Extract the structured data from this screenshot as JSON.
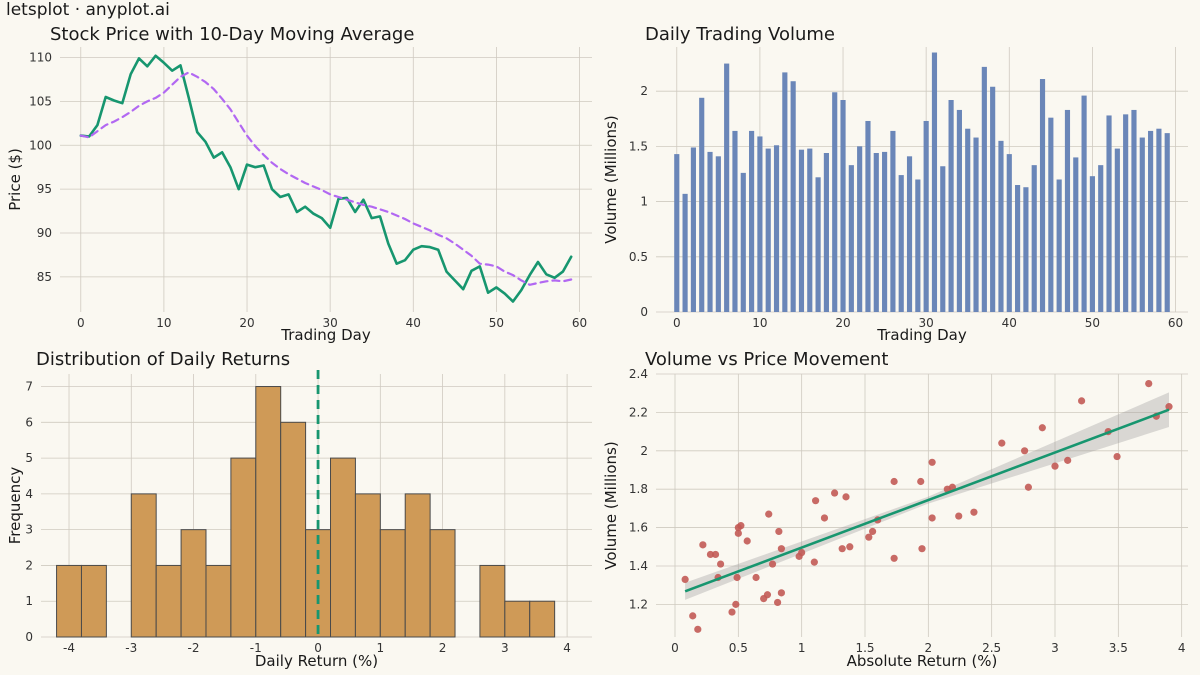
{
  "brand": "letsplot · anyplot.ai",
  "chart_data": [
    {
      "id": "price",
      "type": "line",
      "title": "Stock Price with 10-Day Moving Average",
      "xlabel": "Trading Day",
      "ylabel": "Price ($)",
      "xlim": [
        -2.5,
        61.5
      ],
      "ylim": [
        81,
        111.2
      ],
      "xticks": [
        0,
        10,
        20,
        30,
        40,
        50,
        60
      ],
      "yticks": [
        85,
        90,
        95,
        100,
        105,
        110
      ],
      "series": [
        {
          "color": "#17966F",
          "style": "solid",
          "x": [
            0,
            1,
            2,
            3,
            4,
            5,
            6,
            7,
            8,
            9,
            10,
            11,
            12,
            13,
            14,
            15,
            16,
            17,
            18,
            19,
            20,
            21,
            22,
            23,
            24,
            25,
            26,
            27,
            28,
            29,
            30,
            31,
            32,
            33,
            34,
            35,
            36,
            37,
            38,
            39,
            40,
            41,
            42,
            43,
            44,
            45,
            46,
            47,
            48,
            49,
            50,
            51,
            52,
            53,
            54,
            55,
            56,
            57,
            58,
            59
          ],
          "y": [
            101.1,
            101.0,
            102.3,
            105.5,
            105.1,
            104.8,
            108.1,
            109.9,
            109.0,
            110.2,
            109.4,
            108.5,
            109.1,
            105.4,
            101.5,
            100.4,
            98.6,
            99.2,
            97.5,
            95.0,
            97.8,
            97.5,
            97.7,
            95.0,
            94.1,
            94.4,
            92.4,
            93.0,
            92.2,
            91.7,
            90.6,
            93.9,
            94.0,
            92.4,
            93.8,
            91.7,
            91.9,
            88.8,
            86.5,
            86.9,
            88.1,
            88.5,
            88.4,
            88.1,
            85.6,
            84.6,
            83.6,
            85.7,
            86.2,
            83.2,
            83.8,
            83.1,
            82.2,
            83.5,
            85.2,
            86.7,
            85.3,
            84.9,
            85.6,
            87.3
          ]
        },
        {
          "color": "#B268F2",
          "style": "dashed",
          "x": [
            0,
            1,
            2,
            3,
            4,
            5,
            6,
            7,
            8,
            9,
            10,
            11,
            12,
            13,
            14,
            15,
            16,
            17,
            18,
            19,
            20,
            21,
            22,
            23,
            24,
            25,
            26,
            27,
            28,
            29,
            30,
            31,
            32,
            33,
            34,
            35,
            36,
            37,
            38,
            39,
            40,
            41,
            42,
            43,
            44,
            45,
            46,
            47,
            48,
            49,
            50,
            51,
            52,
            53,
            54,
            55,
            56,
            57,
            58,
            59
          ],
          "y": [
            101.1,
            100.9,
            101.6,
            102.3,
            102.7,
            103.2,
            103.8,
            104.5,
            105.0,
            105.4,
            106.0,
            106.9,
            107.8,
            108.3,
            107.8,
            107.2,
            106.4,
            105.3,
            104.1,
            102.6,
            101.1,
            99.9,
            98.9,
            98.0,
            97.3,
            96.7,
            96.2,
            95.7,
            95.3,
            94.9,
            94.4,
            94.1,
            93.8,
            93.5,
            93.2,
            93.0,
            92.7,
            92.4,
            92.0,
            91.6,
            91.1,
            90.7,
            90.3,
            89.8,
            89.4,
            88.8,
            88.1,
            87.4,
            86.5,
            86.4,
            86.2,
            85.6,
            85.2,
            84.6,
            84.1,
            84.3,
            84.5,
            84.6,
            84.5,
            84.7
          ]
        }
      ]
    },
    {
      "id": "volume",
      "type": "bar",
      "title": "Daily Trading Volume",
      "xlabel": "Trading Day",
      "ylabel": "Volume (Millions)",
      "color": "#6A86B8",
      "xlim": [
        -2.5,
        61.5
      ],
      "ylim": [
        0,
        2.4
      ],
      "xticks": [
        0,
        10,
        20,
        30,
        40,
        50,
        60
      ],
      "yticks": [
        0,
        0.5,
        1,
        1.5,
        2
      ],
      "ytick_labels": [
        "0",
        "0.5",
        "1",
        "1.5",
        "2"
      ],
      "x": [
        0,
        1,
        2,
        3,
        4,
        5,
        6,
        7,
        8,
        9,
        10,
        11,
        12,
        13,
        14,
        15,
        16,
        17,
        18,
        19,
        20,
        21,
        22,
        23,
        24,
        25,
        26,
        27,
        28,
        29,
        30,
        31,
        32,
        33,
        34,
        35,
        36,
        37,
        38,
        39,
        40,
        41,
        42,
        43,
        44,
        45,
        46,
        47,
        48,
        49,
        50,
        51,
        52,
        53,
        54,
        55,
        56,
        57,
        58,
        59
      ],
      "values": [
        1.43,
        1.07,
        1.49,
        1.94,
        1.45,
        1.41,
        2.25,
        1.64,
        1.26,
        1.64,
        1.59,
        1.48,
        1.51,
        2.17,
        2.09,
        1.47,
        1.48,
        1.22,
        1.44,
        1.99,
        1.92,
        1.33,
        1.5,
        1.73,
        1.44,
        1.45,
        1.64,
        1.24,
        1.41,
        1.2,
        1.73,
        2.35,
        1.32,
        1.92,
        1.83,
        1.66,
        1.58,
        2.22,
        2.04,
        1.55,
        1.43,
        1.15,
        1.13,
        1.33,
        2.11,
        1.76,
        1.2,
        1.83,
        1.4,
        1.96,
        1.23,
        1.33,
        1.78,
        1.48,
        1.79,
        1.83,
        1.58,
        1.64,
        1.66,
        1.62
      ]
    },
    {
      "id": "hist",
      "type": "bar",
      "title": "Distribution of Daily Returns",
      "xlabel": "Daily Return (%)",
      "ylabel": "Frequency",
      "color": "#CF9A57",
      "xlim": [
        -4.45,
        4.4
      ],
      "ylim": [
        0,
        7.35
      ],
      "xticks": [
        -4,
        -3,
        -2,
        -1,
        0,
        1,
        2,
        3,
        4
      ],
      "yticks": [
        0,
        1,
        2,
        3,
        4,
        5,
        6,
        7
      ],
      "bin_start": -4.2,
      "bin_width": 0.4,
      "values": [
        2,
        2,
        0,
        4,
        2,
        3,
        2,
        5,
        7,
        6,
        3,
        5,
        4,
        3,
        4,
        3,
        0,
        2,
        1,
        1
      ],
      "vline": {
        "x": 0,
        "color": "#17966F",
        "style": "dashed"
      }
    },
    {
      "id": "scatter",
      "type": "scatter",
      "title": "Volume vs Price Movement",
      "xlabel": "Absolute Return (%)",
      "ylabel": "Volume (Millions)",
      "color": "#C25A55",
      "xlim": [
        -0.15,
        4.05
      ],
      "ylim": [
        1.03,
        2.4
      ],
      "xticks": [
        0,
        0.5,
        1,
        1.5,
        2,
        2.5,
        3,
        3.5,
        4
      ],
      "xtick_labels": [
        "0",
        "0.5",
        "1",
        "1.5",
        "2",
        "2.5",
        "3",
        "3.5",
        "4"
      ],
      "yticks": [
        1.2,
        1.4,
        1.6,
        1.8,
        2,
        2.2,
        2.4
      ],
      "ytick_labels": [
        "1.2",
        "1.4",
        "1.6",
        "1.8",
        "2",
        "2.2",
        "2.4"
      ],
      "x": [
        0.08,
        0.14,
        0.18,
        0.22,
        0.28,
        0.32,
        0.34,
        0.36,
        0.45,
        0.48,
        0.49,
        0.5,
        0.5,
        0.52,
        0.57,
        0.64,
        0.7,
        0.73,
        0.74,
        0.77,
        0.81,
        0.82,
        0.84,
        0.84,
        0.98,
        1.0,
        1.1,
        1.11,
        1.18,
        1.26,
        1.32,
        1.35,
        1.38,
        1.53,
        1.56,
        1.6,
        1.73,
        1.73,
        1.94,
        1.95,
        2.03,
        2.03,
        2.15,
        2.19,
        2.24,
        2.36,
        2.58,
        2.76,
        2.79,
        2.9,
        3.0,
        3.1,
        3.21,
        3.42,
        3.49,
        3.74,
        3.8,
        3.9
      ],
      "y": [
        1.33,
        1.14,
        1.07,
        1.51,
        1.46,
        1.46,
        1.34,
        1.41,
        1.16,
        1.2,
        1.34,
        1.57,
        1.6,
        1.61,
        1.53,
        1.34,
        1.23,
        1.25,
        1.67,
        1.41,
        1.21,
        1.58,
        1.26,
        1.49,
        1.45,
        1.47,
        1.42,
        1.74,
        1.65,
        1.78,
        1.49,
        1.76,
        1.5,
        1.55,
        1.58,
        1.64,
        1.84,
        1.44,
        1.84,
        1.49,
        1.94,
        1.65,
        1.8,
        1.81,
        1.66,
        1.68,
        2.04,
        2.0,
        1.81,
        2.12,
        1.92,
        1.95,
        2.26,
        2.1,
        1.97,
        2.35,
        2.18,
        2.23
      ],
      "fit": {
        "color": "#17966F",
        "x0": 0.08,
        "x1": 3.9,
        "y0": 1.268,
        "y1": 2.214
      }
    }
  ]
}
